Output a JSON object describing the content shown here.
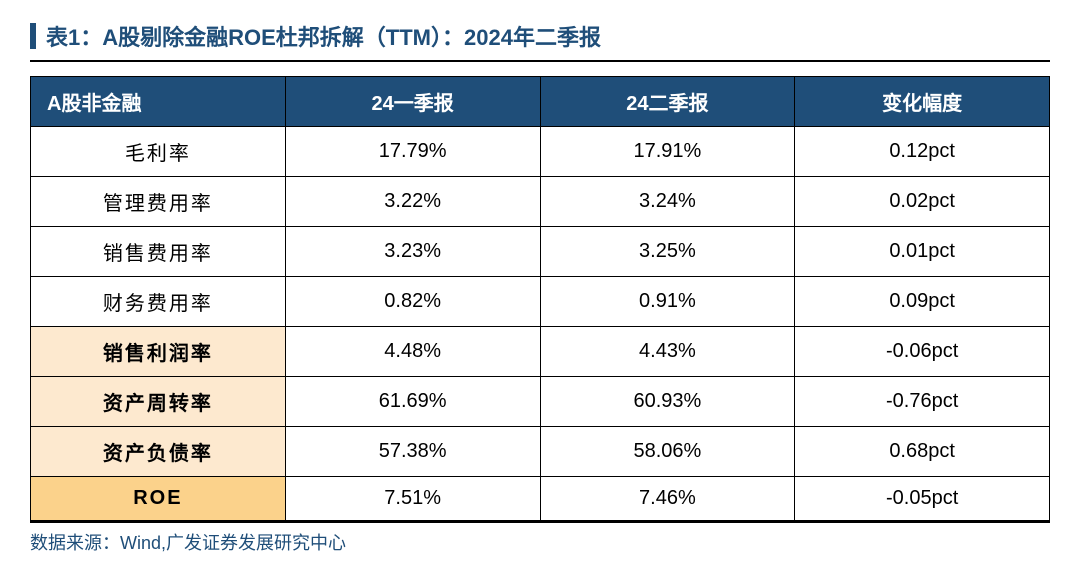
{
  "title": {
    "text": "表1：A股剔除金融ROE杜邦拆解（TTM）：2024年二季报",
    "bar_color": "#1f4e79",
    "text_color": "#1f4e79"
  },
  "table": {
    "header_bg": "#1f4e79",
    "header_color": "#ffffff",
    "border_color": "#000000",
    "highlight_light_bg": "#fde9cf",
    "highlight_strong_bg": "#fbd28b",
    "columns": [
      "A股非金融",
      "24一季报",
      "24二季报",
      "变化幅度"
    ],
    "rows": [
      {
        "cells": [
          "毛利率",
          "17.79%",
          "17.91%",
          "0.12pct"
        ],
        "highlight": "none"
      },
      {
        "cells": [
          "管理费用率",
          "3.22%",
          "3.24%",
          "0.02pct"
        ],
        "highlight": "none"
      },
      {
        "cells": [
          "销售费用率",
          "3.23%",
          "3.25%",
          "0.01pct"
        ],
        "highlight": "none"
      },
      {
        "cells": [
          "财务费用率",
          "0.82%",
          "0.91%",
          "0.09pct"
        ],
        "highlight": "none"
      },
      {
        "cells": [
          "销售利润率",
          "4.48%",
          "4.43%",
          "-0.06pct"
        ],
        "highlight": "light"
      },
      {
        "cells": [
          "资产周转率",
          "61.69%",
          "60.93%",
          "-0.76pct"
        ],
        "highlight": "light"
      },
      {
        "cells": [
          "资产负债率",
          "57.38%",
          "58.06%",
          "0.68pct"
        ],
        "highlight": "light"
      },
      {
        "cells": [
          "ROE",
          "7.51%",
          "7.46%",
          "-0.05pct"
        ],
        "highlight": "strong"
      }
    ]
  },
  "source": {
    "text": "数据来源：Wind,广发证券发展研究中心",
    "color": "#1f4e79"
  }
}
